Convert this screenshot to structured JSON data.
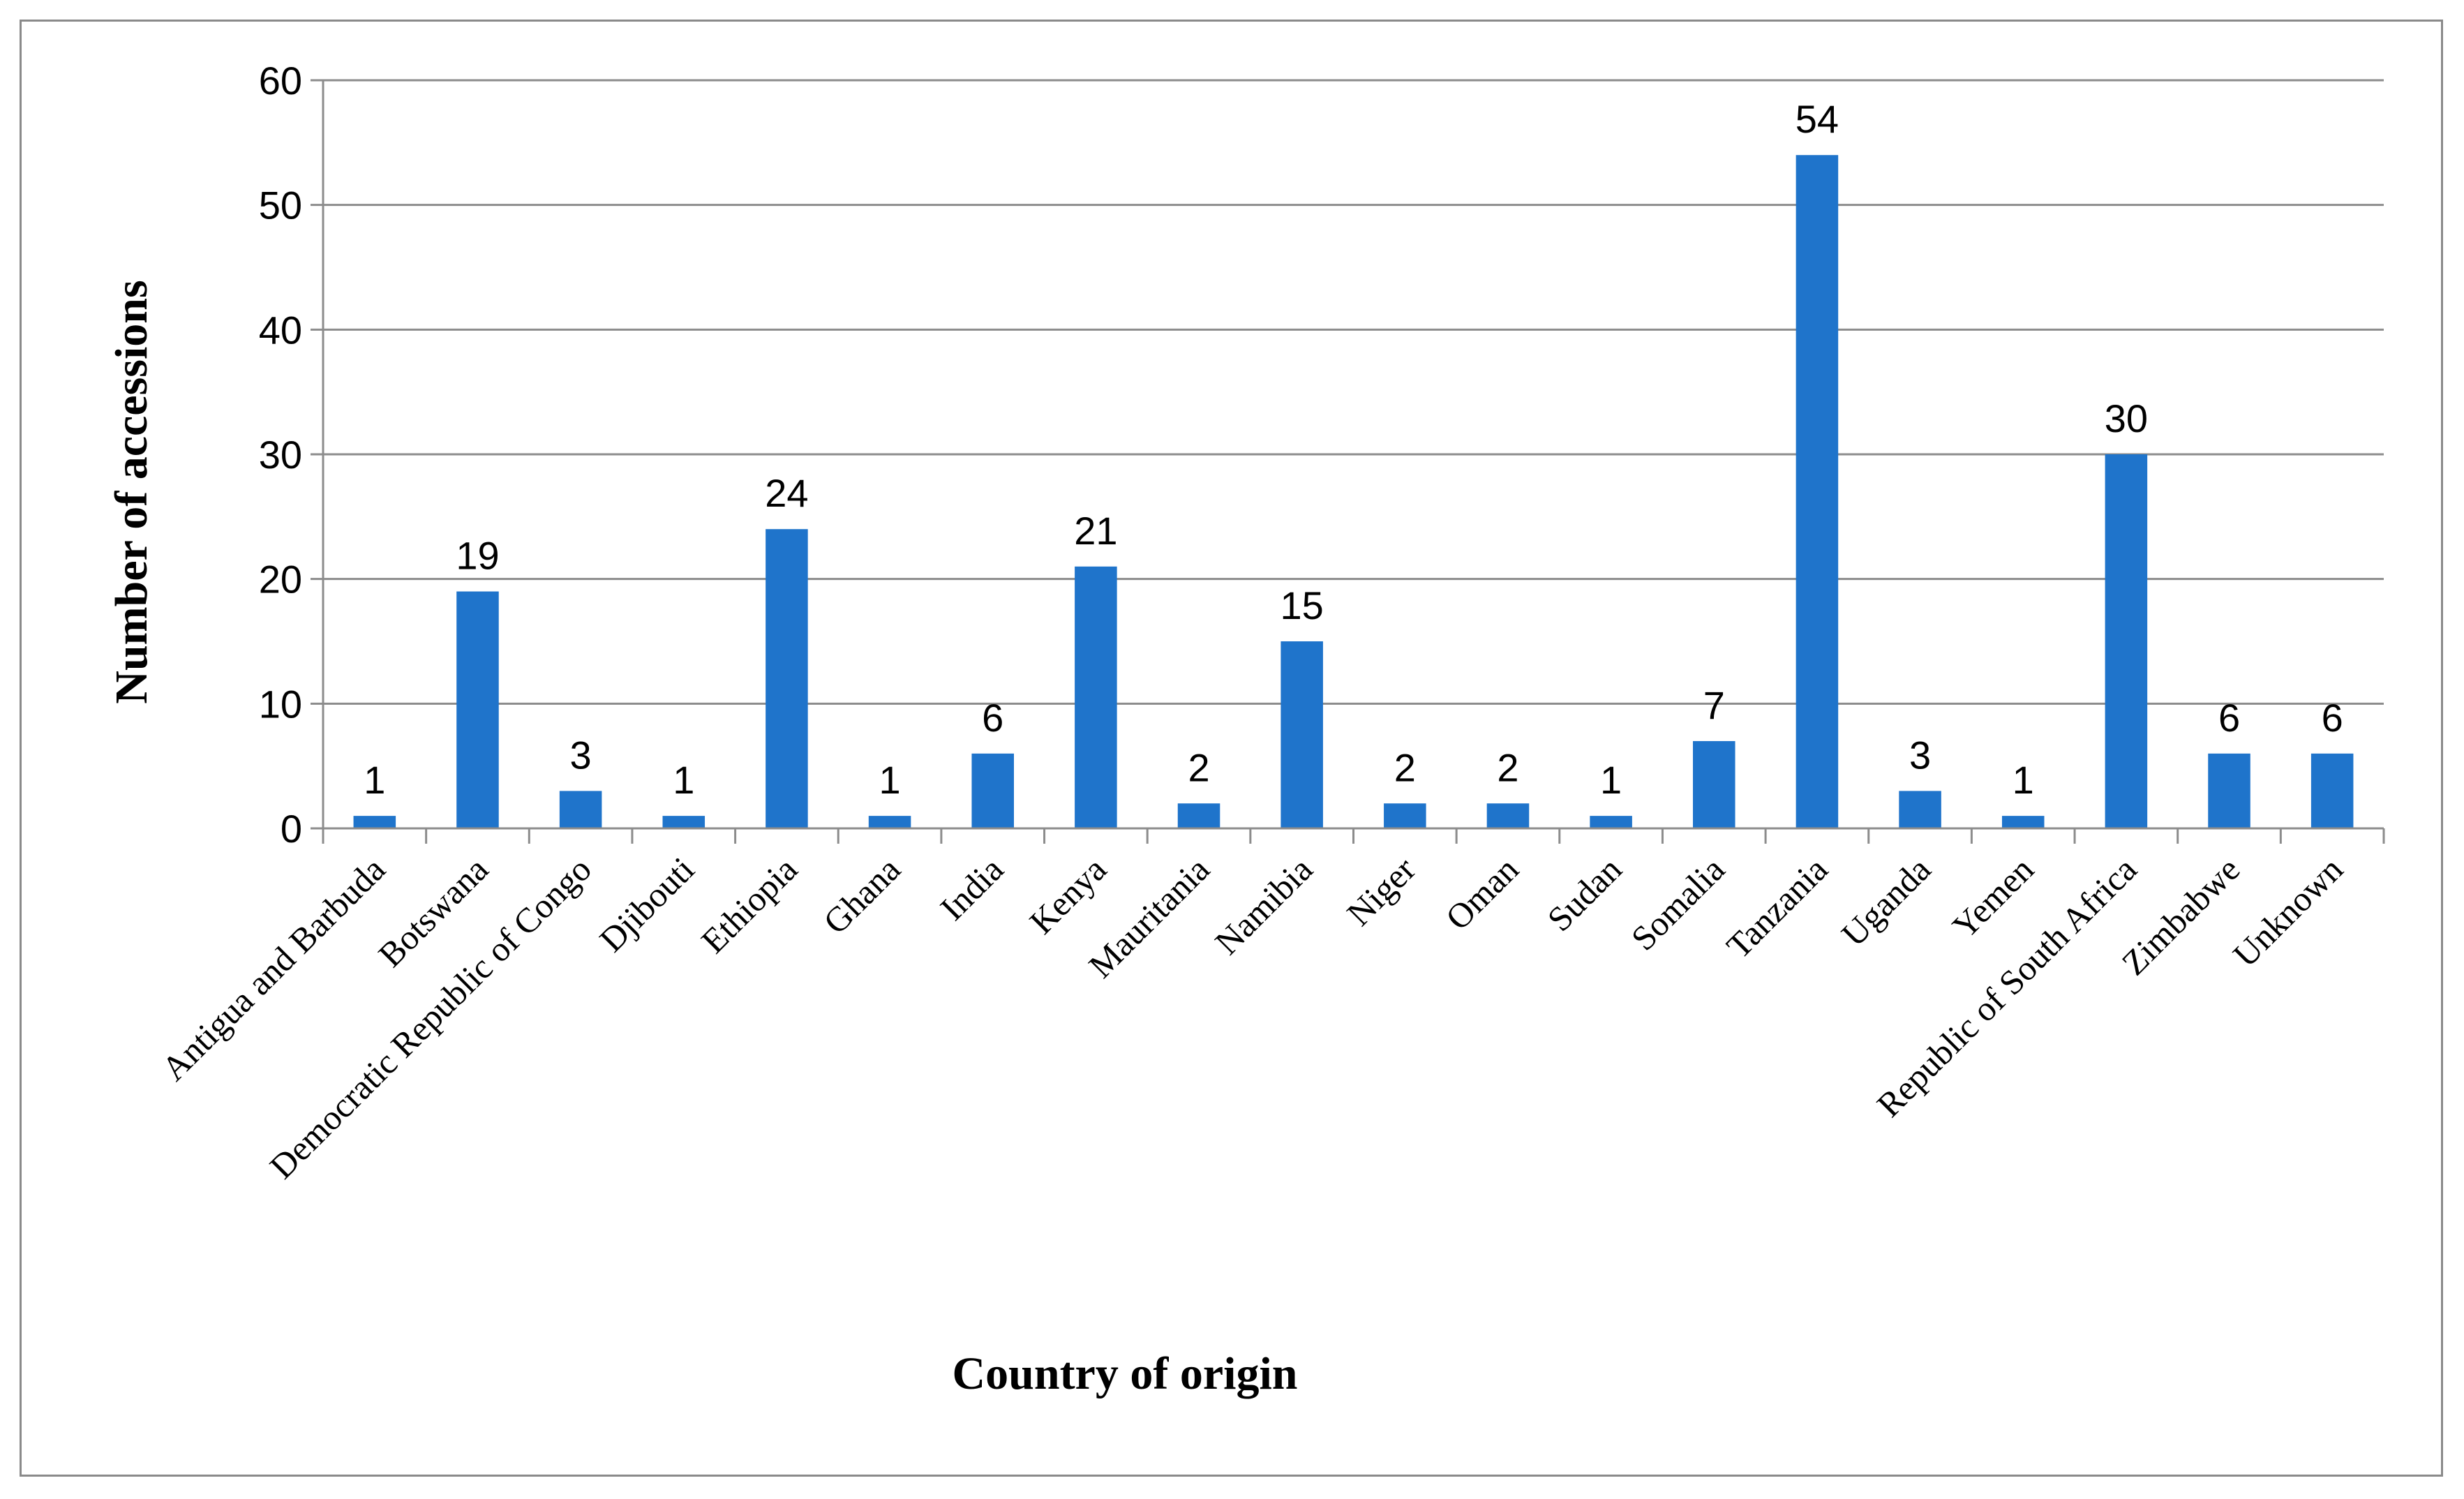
{
  "chart_data": {
    "type": "bar",
    "title": "",
    "xlabel": "Country of origin",
    "ylabel": "Number of accessions",
    "ylim": [
      0,
      60
    ],
    "yticks": [
      0,
      10,
      20,
      30,
      40,
      50,
      60
    ],
    "grid": true,
    "bar_color": "#1f74cb",
    "categories": [
      "Antigua and Barbuda",
      "Botswana",
      "Democratic Republic of Congo",
      "Djibouti",
      "Ethiopia",
      "Ghana",
      "India",
      "Kenya",
      "Mauritania",
      "Namibia",
      "Niger",
      "Oman",
      "Sudan",
      "Somalia",
      "Tanzania",
      "Uganda",
      "Yemen",
      "Republic of South Africa",
      "Zimbabwe",
      "Unknown"
    ],
    "values": [
      1,
      19,
      3,
      1,
      24,
      1,
      6,
      21,
      2,
      15,
      2,
      2,
      1,
      7,
      54,
      3,
      1,
      30,
      6,
      6
    ],
    "data_labels": [
      "1",
      "19",
      "3",
      "1",
      "24",
      "1",
      "6",
      "21",
      "2",
      "15",
      "2",
      "2",
      "1",
      "7",
      "54",
      "3",
      "1",
      "30",
      "6",
      "6"
    ]
  }
}
